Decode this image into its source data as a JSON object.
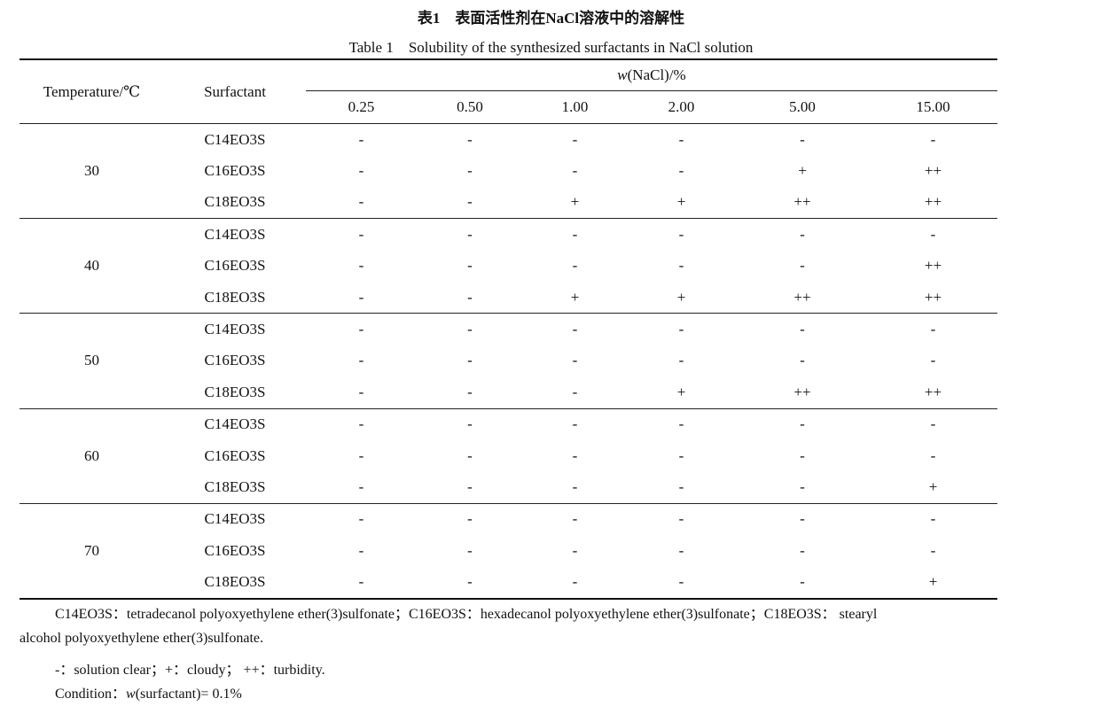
{
  "caption_cn": "表1　表面活性剂在NaCl溶液中的溶解性",
  "caption_en": "Table 1　Solubility of the synthesized surfactants in NaCl solution",
  "header": {
    "temperature": "Temperature/℃",
    "surfactant": "Surfactant",
    "group_var": "w",
    "group_rest": "(NaCl)/%",
    "concentrations": [
      "0.25",
      "0.50",
      "1.00",
      "2.00",
      "5.00",
      "15.00"
    ]
  },
  "groups": [
    {
      "temperature": "30",
      "rows": [
        {
          "surfactant": "C14EO3S",
          "values": [
            "-",
            "-",
            "-",
            "-",
            "-",
            "-"
          ]
        },
        {
          "surfactant": "C16EO3S",
          "values": [
            "-",
            "-",
            "-",
            "-",
            "+",
            "++"
          ]
        },
        {
          "surfactant": "C18EO3S",
          "values": [
            "-",
            "-",
            "+",
            "+",
            "++",
            "++"
          ]
        }
      ]
    },
    {
      "temperature": "40",
      "rows": [
        {
          "surfactant": "C14EO3S",
          "values": [
            "-",
            "-",
            "-",
            "-",
            "-",
            "-"
          ]
        },
        {
          "surfactant": "C16EO3S",
          "values": [
            "-",
            "-",
            "-",
            "-",
            "-",
            "++"
          ]
        },
        {
          "surfactant": "C18EO3S",
          "values": [
            "-",
            "-",
            "+",
            "+",
            "++",
            "++"
          ]
        }
      ]
    },
    {
      "temperature": "50",
      "rows": [
        {
          "surfactant": "C14EO3S",
          "values": [
            "-",
            "-",
            "-",
            "-",
            "-",
            "-"
          ]
        },
        {
          "surfactant": "C16EO3S",
          "values": [
            "-",
            "-",
            "-",
            "-",
            "-",
            "-"
          ]
        },
        {
          "surfactant": "C18EO3S",
          "values": [
            "-",
            "-",
            "-",
            "+",
            "++",
            "++"
          ]
        }
      ]
    },
    {
      "temperature": "60",
      "rows": [
        {
          "surfactant": "C14EO3S",
          "values": [
            "-",
            "-",
            "-",
            "-",
            "-",
            "-"
          ]
        },
        {
          "surfactant": "C16EO3S",
          "values": [
            "-",
            "-",
            "-",
            "-",
            "-",
            "-"
          ]
        },
        {
          "surfactant": "C18EO3S",
          "values": [
            "-",
            "-",
            "-",
            "-",
            "-",
            "+"
          ]
        }
      ]
    },
    {
      "temperature": "70",
      "rows": [
        {
          "surfactant": "C14EO3S",
          "values": [
            "-",
            "-",
            "-",
            "-",
            "-",
            "-"
          ]
        },
        {
          "surfactant": "C16EO3S",
          "values": [
            "-",
            "-",
            "-",
            "-",
            "-",
            "-"
          ]
        },
        {
          "surfactant": "C18EO3S",
          "values": [
            "-",
            "-",
            "-",
            "-",
            "-",
            "+"
          ]
        }
      ]
    }
  ],
  "notes": {
    "abbrev_line1": "C14EO3S：tetradecanol polyoxyethylene ether(3)sulfonate；C16EO3S：hexadecanol polyoxyethylene ether(3)sulfonate；C18EO3S： stearyl",
    "abbrev_line2": "alcohol polyoxyethylene ether(3)sulfonate.",
    "legend": "-：solution clear；+：cloudy； ++：turbidity.",
    "condition_label": "Condition：",
    "condition_var": "w",
    "condition_rest": "(surfactant)= 0.1%"
  }
}
